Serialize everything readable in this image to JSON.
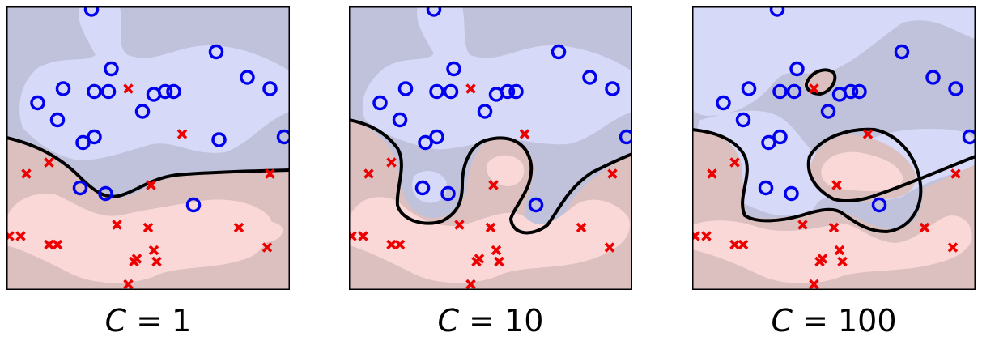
{
  "colors": {
    "blue_region_dark": "#bfc2da",
    "blue_region_light": "#d6d9f7",
    "red_region_dark": "#dcc0c0",
    "red_region_light": "#fbd8d8",
    "boundary": "#000000",
    "circle_class": "#0000ee",
    "cross_class": "#ee0000"
  },
  "chart_data": [
    {
      "type": "scatter",
      "caption_var": "C",
      "caption_rest": " = 1",
      "xlim": [
        0,
        1
      ],
      "ylim": [
        0,
        1
      ],
      "grid": false,
      "circles": [
        [
          0.3,
          0.01
        ],
        [
          0.37,
          0.22
        ],
        [
          0.74,
          0.16
        ],
        [
          0.11,
          0.34
        ],
        [
          0.2,
          0.29
        ],
        [
          0.31,
          0.3
        ],
        [
          0.36,
          0.3
        ],
        [
          0.52,
          0.31
        ],
        [
          0.56,
          0.3
        ],
        [
          0.59,
          0.3
        ],
        [
          0.48,
          0.37
        ],
        [
          0.18,
          0.4
        ],
        [
          0.85,
          0.25
        ],
        [
          0.93,
          0.29
        ],
        [
          0.98,
          0.46
        ],
        [
          0.31,
          0.46
        ],
        [
          0.27,
          0.48
        ],
        [
          0.75,
          0.47
        ],
        [
          0.26,
          0.64
        ],
        [
          0.35,
          0.66
        ],
        [
          0.66,
          0.7
        ]
      ],
      "crosses": [
        [
          0.43,
          0.29
        ],
        [
          0.62,
          0.45
        ],
        [
          0.07,
          0.59
        ],
        [
          0.15,
          0.55
        ],
        [
          0.51,
          0.63
        ],
        [
          0.93,
          0.59
        ],
        [
          0.39,
          0.77
        ],
        [
          0.5,
          0.78
        ],
        [
          0.82,
          0.78
        ],
        [
          0.01,
          0.81
        ],
        [
          0.05,
          0.81
        ],
        [
          0.15,
          0.84
        ],
        [
          0.18,
          0.84
        ],
        [
          0.52,
          0.86
        ],
        [
          0.92,
          0.85
        ],
        [
          0.46,
          0.89
        ],
        [
          0.45,
          0.9
        ],
        [
          0.53,
          0.9
        ],
        [
          0.43,
          0.98
        ]
      ]
    },
    {
      "type": "scatter",
      "caption_var": "C",
      "caption_rest": " = 10",
      "xlim": [
        0,
        1
      ],
      "ylim": [
        0,
        1
      ],
      "grid": false,
      "circles": [
        [
          0.3,
          0.01
        ],
        [
          0.37,
          0.22
        ],
        [
          0.74,
          0.16
        ],
        [
          0.11,
          0.34
        ],
        [
          0.2,
          0.29
        ],
        [
          0.31,
          0.3
        ],
        [
          0.36,
          0.3
        ],
        [
          0.52,
          0.31
        ],
        [
          0.56,
          0.3
        ],
        [
          0.59,
          0.3
        ],
        [
          0.48,
          0.37
        ],
        [
          0.18,
          0.4
        ],
        [
          0.85,
          0.25
        ],
        [
          0.93,
          0.29
        ],
        [
          0.98,
          0.46
        ],
        [
          0.31,
          0.46
        ],
        [
          0.27,
          0.48
        ],
        [
          0.26,
          0.64
        ],
        [
          0.35,
          0.66
        ],
        [
          0.66,
          0.7
        ]
      ],
      "crosses": [
        [
          0.43,
          0.29
        ],
        [
          0.62,
          0.45
        ],
        [
          0.07,
          0.59
        ],
        [
          0.15,
          0.55
        ],
        [
          0.51,
          0.63
        ],
        [
          0.93,
          0.59
        ],
        [
          0.39,
          0.77
        ],
        [
          0.5,
          0.78
        ],
        [
          0.82,
          0.78
        ],
        [
          0.01,
          0.81
        ],
        [
          0.05,
          0.81
        ],
        [
          0.15,
          0.84
        ],
        [
          0.18,
          0.84
        ],
        [
          0.52,
          0.86
        ],
        [
          0.92,
          0.85
        ],
        [
          0.46,
          0.89
        ],
        [
          0.45,
          0.9
        ],
        [
          0.53,
          0.9
        ],
        [
          0.43,
          0.98
        ]
      ]
    },
    {
      "type": "scatter",
      "caption_var": "C",
      "caption_rest": " = 100",
      "xlim": [
        0,
        1
      ],
      "ylim": [
        0,
        1
      ],
      "grid": false,
      "circles": [
        [
          0.3,
          0.01
        ],
        [
          0.37,
          0.22
        ],
        [
          0.74,
          0.16
        ],
        [
          0.11,
          0.34
        ],
        [
          0.2,
          0.29
        ],
        [
          0.31,
          0.3
        ],
        [
          0.36,
          0.3
        ],
        [
          0.52,
          0.31
        ],
        [
          0.56,
          0.3
        ],
        [
          0.59,
          0.3
        ],
        [
          0.48,
          0.37
        ],
        [
          0.18,
          0.4
        ],
        [
          0.85,
          0.25
        ],
        [
          0.93,
          0.29
        ],
        [
          0.98,
          0.46
        ],
        [
          0.31,
          0.46
        ],
        [
          0.27,
          0.48
        ],
        [
          0.26,
          0.64
        ],
        [
          0.35,
          0.66
        ],
        [
          0.66,
          0.7
        ]
      ],
      "crosses": [
        [
          0.43,
          0.29
        ],
        [
          0.62,
          0.45
        ],
        [
          0.07,
          0.59
        ],
        [
          0.15,
          0.55
        ],
        [
          0.51,
          0.63
        ],
        [
          0.93,
          0.59
        ],
        [
          0.39,
          0.77
        ],
        [
          0.5,
          0.78
        ],
        [
          0.82,
          0.78
        ],
        [
          0.01,
          0.81
        ],
        [
          0.05,
          0.81
        ],
        [
          0.15,
          0.84
        ],
        [
          0.18,
          0.84
        ],
        [
          0.52,
          0.86
        ],
        [
          0.92,
          0.85
        ],
        [
          0.46,
          0.89
        ],
        [
          0.45,
          0.9
        ],
        [
          0.53,
          0.9
        ],
        [
          0.43,
          0.98
        ]
      ]
    }
  ]
}
